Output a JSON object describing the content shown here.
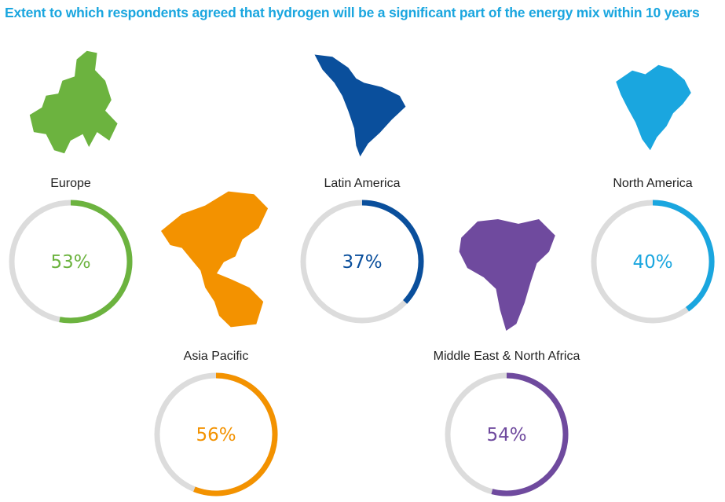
{
  "title": "Extent to which respondents agreed that hydrogen will be a significant part of the energy mix within 10 years",
  "colors": {
    "title": "#1aa6df",
    "track": "#dcdcdc",
    "label": "#222222"
  },
  "chart_data": {
    "type": "pie",
    "title": "Extent to which respondents agreed that hydrogen will be a significant part of the energy mix within 10 years",
    "unit": "%",
    "categories": [
      "Europe",
      "Latin America",
      "North America",
      "Asia Pacific",
      "Middle East & North Africa"
    ],
    "values": [
      53,
      37,
      40,
      56,
      54
    ],
    "series": [
      {
        "name": "Europe",
        "value": 53,
        "color": "#6cb33f",
        "icon": "europe-map-icon"
      },
      {
        "name": "Latin America",
        "value": 37,
        "color": "#0a4f9c",
        "icon": "latin-america-map-icon"
      },
      {
        "name": "North America",
        "value": 40,
        "color": "#1aa6df",
        "icon": "north-america-map-icon"
      },
      {
        "name": "Asia Pacific",
        "value": 56,
        "color": "#f39200",
        "icon": "asia-pacific-map-icon"
      },
      {
        "name": "Middle East & North Africa",
        "value": 54,
        "color": "#6f4a9e",
        "icon": "middle-east-africa-map-icon"
      }
    ]
  }
}
